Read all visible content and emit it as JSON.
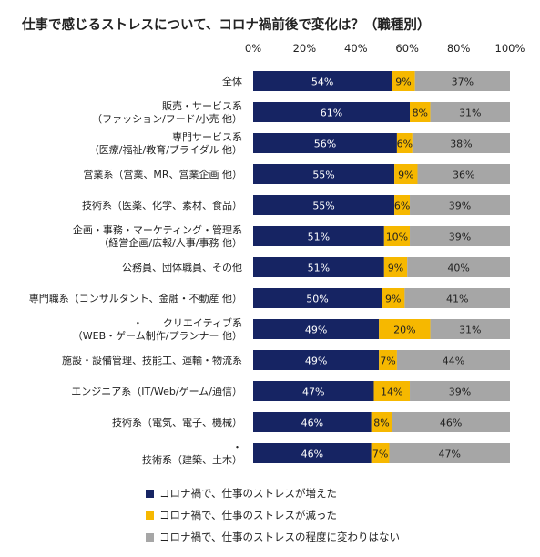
{
  "chart_data": {
    "type": "bar",
    "title": "仕事で感じるストレスについて、コロナ禍前後で変化は？（職種別）",
    "xlim": [
      0,
      100
    ],
    "x_ticks": [
      "0%",
      "20%",
      "40%",
      "60%",
      "80%",
      "100%"
    ],
    "categories": [
      {
        "lines": [
          "全体"
        ]
      },
      {
        "lines": [
          "販売・サービス系",
          "（ファッション/フード/小売 他）"
        ]
      },
      {
        "lines": [
          "専門サービス系",
          "（医療/福祉/教育/ブライダル 他）"
        ]
      },
      {
        "lines": [
          "営業系（営業、MR、営業企画 他）"
        ]
      },
      {
        "lines": [
          "技術系（医薬、化学、素材、食品）"
        ]
      },
      {
        "lines": [
          "企画・事務・マーケティング・管理系",
          "（経営企画/広報/人事/事務 他）"
        ]
      },
      {
        "lines": [
          "公務員、団体職員、その他"
        ]
      },
      {
        "lines": [
          "専門職系（コンサルタント、金融・不動産 他）"
        ]
      },
      {
        "lines": [
          "・　　クリエイティブ系",
          "（WEB・ゲーム制作/プランナー 他）"
        ]
      },
      {
        "lines": [
          "施設・設備管理、技能工、運輸・物流系"
        ]
      },
      {
        "lines": [
          "エンジニア系（IT/Web/ゲーム/通信）"
        ]
      },
      {
        "lines": [
          "技術系（電気、電子、機械）"
        ]
      },
      {
        "lines": [
          "・",
          "技術系（建築、土木）"
        ]
      }
    ],
    "series": [
      {
        "name": "コロナ禍で、仕事のストレスが増えた",
        "color": "#162463",
        "label_color": "#ffffff",
        "values": [
          54,
          61,
          56,
          55,
          55,
          51,
          51,
          50,
          49,
          49,
          47,
          46,
          46
        ],
        "labels": [
          "54%",
          "61%",
          "56%",
          "55%",
          "55%",
          "51%",
          "51%",
          "50%",
          "49%",
          "49%",
          "47%",
          "46%",
          "46%"
        ]
      },
      {
        "name": "コロナ禍で、仕事のストレスが減った",
        "color": "#f6b800",
        "label_color": "#222222",
        "values": [
          9,
          8,
          6,
          9,
          6,
          10,
          9,
          9,
          20,
          7,
          14,
          8,
          7
        ],
        "labels": [
          "9%",
          "8%",
          "6%",
          "9%",
          "6%",
          "10%",
          "9%",
          "9%",
          "20%",
          "7%",
          "14%",
          "8%",
          "7%"
        ]
      },
      {
        "name": "コロナ禍で、仕事のストレスの程度に変わりはない",
        "color": "#a6a6a6",
        "label_color": "#222222",
        "values": [
          37,
          31,
          38,
          36,
          39,
          39,
          40,
          41,
          31,
          44,
          39,
          46,
          47
        ],
        "labels": [
          "37%",
          "31%",
          "38%",
          "36%",
          "39%",
          "39%",
          "40%",
          "41%",
          "31%",
          "44%",
          "39%",
          "46%",
          "47%"
        ]
      }
    ],
    "legend_position": "bottom",
    "grid": false
  }
}
